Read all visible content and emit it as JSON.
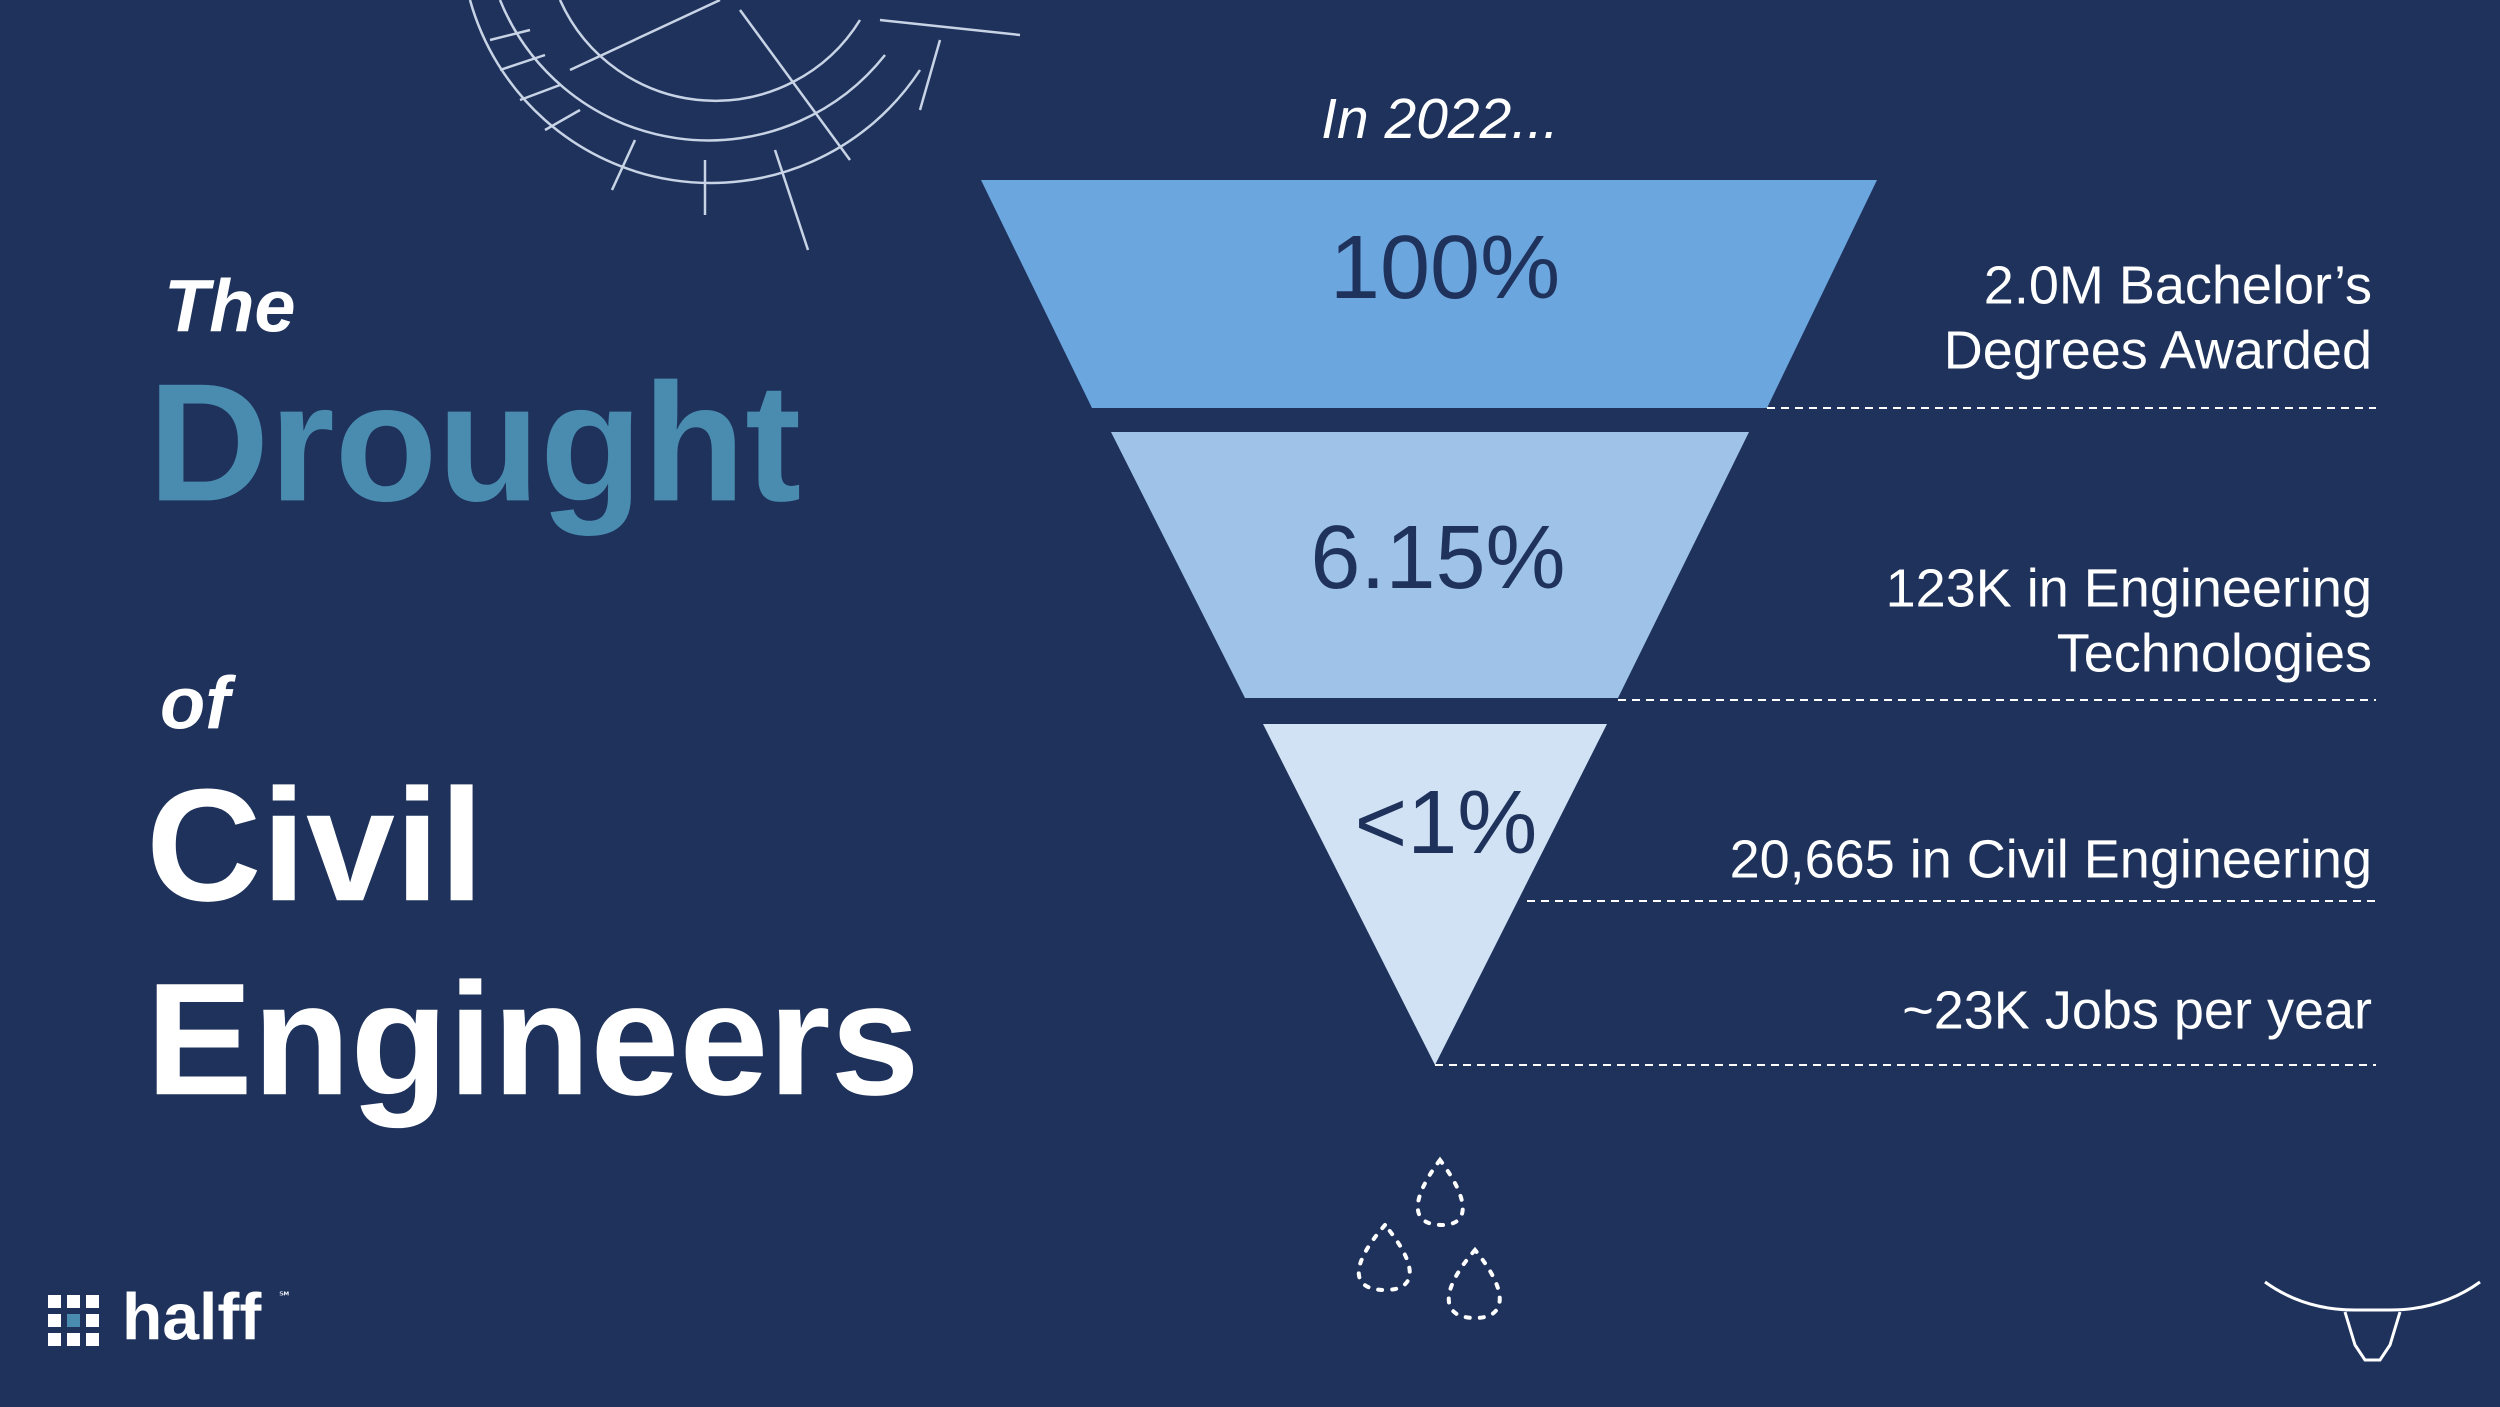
{
  "intro": "In 2022...",
  "title": {
    "line1": "The",
    "line2": "Drought",
    "line3": "of",
    "line4": "Civil",
    "line5": "Engineers"
  },
  "funnel": [
    {
      "percent": "100%",
      "label": [
        "2.0M Bachelor’s",
        "Degrees Awarded"
      ]
    },
    {
      "percent": "6.15%",
      "label": [
        "123K in Engineering",
        "Technologies"
      ]
    },
    {
      "percent": "<1%",
      "label": [
        "20,665 in Civil Engineering"
      ]
    }
  ],
  "funnel_end_label": "~23K Jobs per year",
  "logo": {
    "name": "halff",
    "mark": "℠"
  }
}
